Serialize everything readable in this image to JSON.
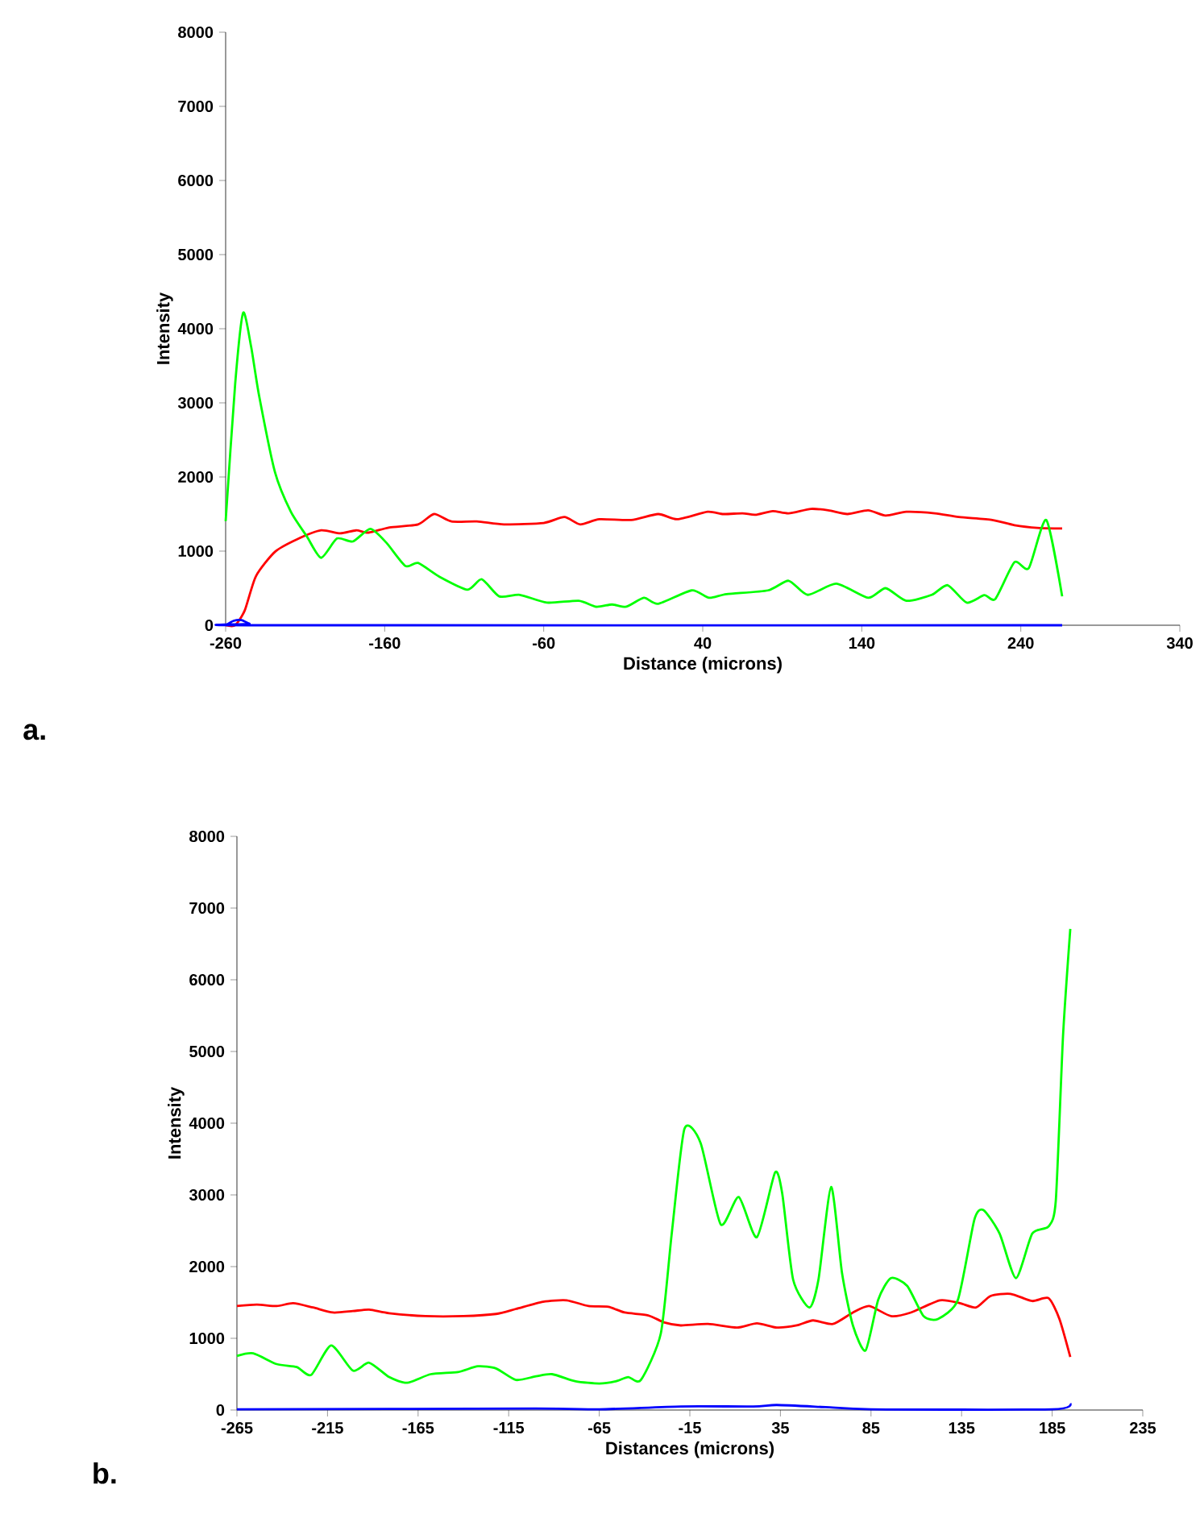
{
  "chart_data": [
    {
      "type": "line",
      "xlabel": "Distance (microns)",
      "ylabel": "Intensity",
      "annotations": [
        "a."
      ],
      "xlim": [
        -260,
        340
      ],
      "ylim": [
        0,
        8000
      ],
      "xticks": [
        -260,
        -160,
        -60,
        40,
        140,
        240,
        340
      ],
      "yticks": [
        0,
        1000,
        2000,
        3000,
        4000,
        5000,
        6000,
        7000,
        8000
      ],
      "marker": "none",
      "line_style": "solid",
      "series": [
        {
          "color": "#ff0000",
          "x": [
            -260,
            -254,
            -248,
            -241,
            -229,
            -215,
            -200,
            -188,
            -178,
            -170,
            -157,
            -139,
            -129,
            -118,
            -102,
            -85,
            -60,
            -47,
            -37,
            -25,
            -5,
            12,
            24,
            43,
            53,
            65,
            73,
            84,
            94,
            108,
            119,
            131,
            144,
            155,
            168,
            186,
            201,
            222,
            236,
            252,
            266
          ],
          "values": [
            0,
            0,
            200,
            660,
            990,
            1160,
            1280,
            1240,
            1280,
            1250,
            1320,
            1360,
            1500,
            1400,
            1400,
            1360,
            1380,
            1460,
            1360,
            1430,
            1420,
            1500,
            1430,
            1530,
            1500,
            1510,
            1490,
            1540,
            1510,
            1570,
            1550,
            1500,
            1550,
            1480,
            1530,
            1510,
            1460,
            1420,
            1350,
            1310,
            1305
          ]
        },
        {
          "color": "#00ff00",
          "x": [
            -260,
            -254,
            -249,
            -244,
            -239,
            -229,
            -219,
            -209,
            -200,
            -190,
            -180,
            -169,
            -159,
            -147,
            -139,
            -126,
            -108,
            -99,
            -88,
            -75,
            -58,
            -38,
            -27,
            -17,
            -8,
            3,
            12,
            33,
            44,
            55,
            81,
            94,
            106,
            124,
            144,
            155,
            168,
            184,
            194,
            206,
            217,
            224,
            236,
            245,
            256,
            266
          ],
          "values": [
            1405,
            3260,
            4215,
            3760,
            3100,
            2066,
            1530,
            1200,
            910,
            1170,
            1130,
            1300,
            1115,
            800,
            840,
            660,
            480,
            620,
            390,
            410,
            305,
            330,
            250,
            280,
            250,
            370,
            290,
            470,
            370,
            420,
            470,
            600,
            410,
            560,
            370,
            500,
            330,
            410,
            540,
            305,
            405,
            355,
            850,
            770,
            1420,
            390
          ]
        },
        {
          "color": "#0000ff",
          "x": [
            -260,
            -255,
            -250,
            -245,
            -240,
            266
          ],
          "values": [
            0,
            60,
            70,
            20,
            0,
            0
          ]
        }
      ]
    },
    {
      "type": "line",
      "xlabel": "Distances (microns)",
      "ylabel": "Intensity",
      "annotations": [
        "b."
      ],
      "xlim": [
        -265,
        235
      ],
      "ylim": [
        0,
        8000
      ],
      "xticks": [
        -265,
        -215,
        -165,
        -115,
        -65,
        -15,
        35,
        85,
        135,
        185,
        235
      ],
      "yticks": [
        0,
        1000,
        2000,
        3000,
        4000,
        5000,
        6000,
        7000,
        8000
      ],
      "marker": "none",
      "line_style": "solid",
      "series": [
        {
          "color": "#ff0000",
          "x": [
            -265,
            -254,
            -243,
            -234,
            -223,
            -212,
            -201,
            -192,
            -181,
            -161,
            -140,
            -122,
            -111,
            -96,
            -83,
            -71,
            -60,
            -51,
            -38,
            -29,
            -20,
            -5,
            11,
            22,
            33,
            44,
            53,
            64,
            75,
            84,
            96,
            107,
            123,
            134,
            143,
            151,
            162,
            174,
            183,
            189,
            195
          ],
          "values": [
            1450,
            1470,
            1450,
            1490,
            1430,
            1360,
            1380,
            1400,
            1350,
            1310,
            1310,
            1340,
            1410,
            1510,
            1530,
            1450,
            1440,
            1360,
            1320,
            1220,
            1180,
            1200,
            1150,
            1210,
            1150,
            1180,
            1250,
            1200,
            1360,
            1450,
            1310,
            1360,
            1530,
            1490,
            1430,
            1590,
            1620,
            1520,
            1560,
            1270,
            740
          ]
        },
        {
          "color": "#00ff00",
          "x": [
            -265,
            -256,
            -243,
            -232,
            -224,
            -213,
            -201,
            -192,
            -181,
            -171,
            -158,
            -143,
            -132,
            -122,
            -111,
            -100,
            -91,
            -78,
            -65,
            -56,
            -49,
            -42,
            -31,
            -25,
            -18,
            -9,
            2,
            12,
            22,
            32,
            36,
            42,
            51,
            56,
            63,
            69,
            75,
            82,
            89,
            96,
            105,
            114,
            122,
            133,
            142,
            147,
            156,
            165,
            174,
            183,
            187,
            191,
            195
          ],
          "values": [
            754,
            790,
            640,
            600,
            490,
            900,
            550,
            660,
            460,
            380,
            500,
            530,
            610,
            580,
            420,
            470,
            500,
            400,
            370,
            400,
            460,
            420,
            1070,
            2460,
            3920,
            3720,
            2590,
            2970,
            2410,
            3310,
            3020,
            1820,
            1430,
            1820,
            3110,
            1910,
            1180,
            830,
            1540,
            1840,
            1730,
            1310,
            1270,
            1540,
            2650,
            2790,
            2460,
            1840,
            2460,
            2560,
            2920,
            5220,
            6710
          ]
        },
        {
          "color": "#0000ff",
          "x": [
            -265,
            -100,
            -65,
            -20,
            20,
            33,
            60,
            85,
            185,
            195
          ],
          "values": [
            10,
            20,
            10,
            50,
            50,
            70,
            40,
            10,
            10,
            90
          ]
        }
      ]
    }
  ]
}
